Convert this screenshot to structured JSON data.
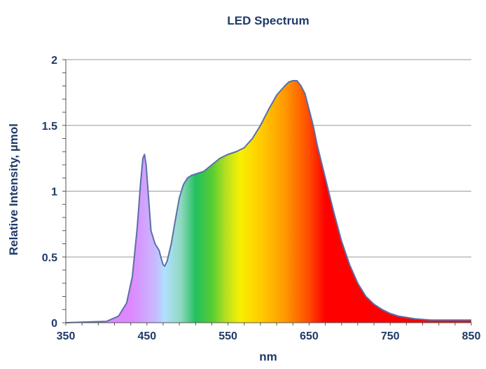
{
  "chart_data": {
    "type": "area",
    "title": "LED Spectrum",
    "xlabel": "nm",
    "ylabel": "Relative Intensity, µmol",
    "xlim": [
      350,
      850
    ],
    "ylim": [
      0,
      2
    ],
    "xticks": [
      350,
      450,
      550,
      650,
      750,
      850
    ],
    "yticks": [
      0,
      0.5,
      1,
      1.5,
      2
    ],
    "ytick_labels": [
      "0",
      "0.5",
      "1",
      "1.5",
      "2"
    ],
    "grid": "horizontal",
    "legend": "none",
    "colors": {
      "text": "#1f3a68",
      "line": "#5a6fa8",
      "grid": "#9a9a9a",
      "axis": "#555555"
    },
    "fill_gradient": [
      {
        "nm": 430,
        "color": "#dd88ff"
      },
      {
        "nm": 460,
        "color": "#c8b8ff"
      },
      {
        "nm": 472,
        "color": "#b0e0ff"
      },
      {
        "nm": 492,
        "color": "#90d8c0"
      },
      {
        "nm": 510,
        "color": "#22c060"
      },
      {
        "nm": 530,
        "color": "#55cc33"
      },
      {
        "nm": 548,
        "color": "#b8e020"
      },
      {
        "nm": 565,
        "color": "#f8f000"
      },
      {
        "nm": 590,
        "color": "#ffcc00"
      },
      {
        "nm": 620,
        "color": "#ff9900"
      },
      {
        "nm": 650,
        "color": "#ff4a00"
      },
      {
        "nm": 670,
        "color": "#ff0000"
      },
      {
        "nm": 850,
        "color": "#ff0000"
      }
    ],
    "series": [
      {
        "x": [
          350,
          400,
          415,
          425,
          432,
          438,
          442,
          445,
          447,
          449,
          452,
          455,
          460,
          465,
          468,
          470,
          472,
          475,
          480,
          485,
          490,
          495,
          500,
          505,
          510,
          520,
          530,
          540,
          550,
          560,
          570,
          580,
          590,
          600,
          610,
          620,
          625,
          630,
          635,
          640,
          645,
          650,
          655,
          660,
          670,
          680,
          690,
          700,
          710,
          720,
          730,
          740,
          750,
          760,
          770,
          780,
          790,
          800,
          810,
          820,
          830,
          840,
          850
        ],
        "y": [
          0,
          0.01,
          0.05,
          0.15,
          0.35,
          0.72,
          1.05,
          1.25,
          1.28,
          1.2,
          0.95,
          0.7,
          0.6,
          0.55,
          0.48,
          0.44,
          0.43,
          0.47,
          0.6,
          0.78,
          0.95,
          1.05,
          1.1,
          1.12,
          1.13,
          1.15,
          1.2,
          1.25,
          1.28,
          1.3,
          1.33,
          1.4,
          1.5,
          1.62,
          1.73,
          1.8,
          1.83,
          1.84,
          1.84,
          1.8,
          1.74,
          1.62,
          1.5,
          1.35,
          1.1,
          0.85,
          0.62,
          0.44,
          0.3,
          0.2,
          0.14,
          0.1,
          0.07,
          0.05,
          0.04,
          0.03,
          0.025,
          0.02,
          0.02,
          0.02,
          0.02,
          0.02,
          0.02
        ]
      }
    ]
  }
}
